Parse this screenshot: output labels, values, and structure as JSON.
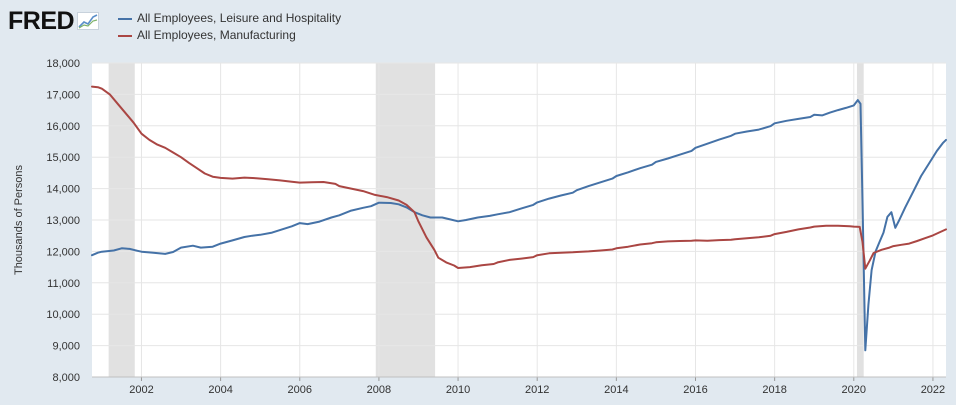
{
  "logo": {
    "text": "FRED"
  },
  "colors": {
    "page_background": "#e1e9f0",
    "plot_background": "#ffffff",
    "recession_shade": "#e1e1e1",
    "grid": "#e6e6e6",
    "leisure": "#4572a7",
    "manufacturing": "#aa4643"
  },
  "chart_data": {
    "type": "line",
    "ylabel": "Thousands of Persons",
    "xlabel": "",
    "ylim": [
      8000,
      18000
    ],
    "xlim": [
      2000.75,
      2022.33
    ],
    "yticks": [
      8000,
      9000,
      10000,
      11000,
      12000,
      13000,
      14000,
      15000,
      16000,
      17000,
      18000
    ],
    "ytick_labels": [
      "8,000",
      "9,000",
      "10,000",
      "11,000",
      "12,000",
      "13,000",
      "14,000",
      "15,000",
      "16,000",
      "17,000",
      "18,000"
    ],
    "xticks": [
      2002,
      2004,
      2006,
      2008,
      2010,
      2012,
      2014,
      2016,
      2018,
      2020,
      2022
    ],
    "xtick_labels": [
      "2002",
      "2004",
      "2006",
      "2008",
      "2010",
      "2012",
      "2014",
      "2016",
      "2018",
      "2020",
      "2022"
    ],
    "grid": true,
    "legend_position": "top-left",
    "recessions": [
      {
        "start": 2001.17,
        "end": 2001.83
      },
      {
        "start": 2007.92,
        "end": 2009.42
      },
      {
        "start": 2020.08,
        "end": 2020.25
      }
    ],
    "series": [
      {
        "name": "All Employees, Leisure and Hospitality",
        "color": "#4572a7",
        "points": [
          [
            2000.75,
            11880
          ],
          [
            2000.9,
            11960
          ],
          [
            2001.0,
            11990
          ],
          [
            2001.3,
            12030
          ],
          [
            2001.5,
            12100
          ],
          [
            2001.7,
            12080
          ],
          [
            2001.9,
            12020
          ],
          [
            2002.0,
            11990
          ],
          [
            2002.3,
            11960
          ],
          [
            2002.6,
            11920
          ],
          [
            2002.8,
            11980
          ],
          [
            2003.0,
            12120
          ],
          [
            2003.3,
            12180
          ],
          [
            2003.5,
            12120
          ],
          [
            2003.8,
            12150
          ],
          [
            2004.0,
            12250
          ],
          [
            2004.3,
            12350
          ],
          [
            2004.6,
            12460
          ],
          [
            2004.8,
            12500
          ],
          [
            2005.0,
            12530
          ],
          [
            2005.3,
            12600
          ],
          [
            2005.6,
            12720
          ],
          [
            2005.8,
            12800
          ],
          [
            2006.0,
            12900
          ],
          [
            2006.2,
            12870
          ],
          [
            2006.5,
            12950
          ],
          [
            2006.8,
            13080
          ],
          [
            2007.0,
            13150
          ],
          [
            2007.3,
            13300
          ],
          [
            2007.6,
            13390
          ],
          [
            2007.8,
            13440
          ],
          [
            2008.0,
            13550
          ],
          [
            2008.3,
            13540
          ],
          [
            2008.5,
            13500
          ],
          [
            2008.7,
            13400
          ],
          [
            2008.9,
            13250
          ],
          [
            2009.1,
            13150
          ],
          [
            2009.3,
            13080
          ],
          [
            2009.6,
            13080
          ],
          [
            2009.8,
            13020
          ],
          [
            2010.0,
            12960
          ],
          [
            2010.2,
            13000
          ],
          [
            2010.5,
            13080
          ],
          [
            2010.8,
            13130
          ],
          [
            2011.0,
            13180
          ],
          [
            2011.3,
            13250
          ],
          [
            2011.6,
            13370
          ],
          [
            2011.9,
            13480
          ],
          [
            2012.0,
            13560
          ],
          [
            2012.3,
            13680
          ],
          [
            2012.6,
            13780
          ],
          [
            2012.9,
            13870
          ],
          [
            2013.0,
            13950
          ],
          [
            2013.3,
            14080
          ],
          [
            2013.6,
            14200
          ],
          [
            2013.9,
            14320
          ],
          [
            2014.0,
            14400
          ],
          [
            2014.3,
            14520
          ],
          [
            2014.6,
            14650
          ],
          [
            2014.9,
            14760
          ],
          [
            2015.0,
            14850
          ],
          [
            2015.3,
            14960
          ],
          [
            2015.6,
            15080
          ],
          [
            2015.9,
            15200
          ],
          [
            2016.0,
            15300
          ],
          [
            2016.3,
            15430
          ],
          [
            2016.6,
            15560
          ],
          [
            2016.9,
            15680
          ],
          [
            2017.0,
            15750
          ],
          [
            2017.3,
            15820
          ],
          [
            2017.6,
            15880
          ],
          [
            2017.9,
            15990
          ],
          [
            2018.0,
            16080
          ],
          [
            2018.3,
            16160
          ],
          [
            2018.6,
            16220
          ],
          [
            2018.9,
            16280
          ],
          [
            2019.0,
            16350
          ],
          [
            2019.2,
            16330
          ],
          [
            2019.4,
            16420
          ],
          [
            2019.6,
            16500
          ],
          [
            2019.8,
            16570
          ],
          [
            2020.0,
            16650
          ],
          [
            2020.1,
            16820
          ],
          [
            2020.17,
            16700
          ],
          [
            2020.22,
            13600
          ],
          [
            2020.29,
            8850
          ],
          [
            2020.37,
            10300
          ],
          [
            2020.45,
            11400
          ],
          [
            2020.55,
            12000
          ],
          [
            2020.65,
            12300
          ],
          [
            2020.75,
            12600
          ],
          [
            2020.85,
            13100
          ],
          [
            2020.95,
            13250
          ],
          [
            2021.05,
            12750
          ],
          [
            2021.15,
            13000
          ],
          [
            2021.3,
            13400
          ],
          [
            2021.5,
            13900
          ],
          [
            2021.7,
            14400
          ],
          [
            2021.9,
            14800
          ],
          [
            2022.1,
            15200
          ],
          [
            2022.25,
            15450
          ],
          [
            2022.33,
            15550
          ]
        ]
      },
      {
        "name": "All Employees, Manufacturing",
        "color": "#aa4643",
        "points": [
          [
            2000.75,
            17250
          ],
          [
            2000.9,
            17230
          ],
          [
            2001.0,
            17180
          ],
          [
            2001.2,
            17000
          ],
          [
            2001.4,
            16700
          ],
          [
            2001.6,
            16400
          ],
          [
            2001.8,
            16100
          ],
          [
            2002.0,
            15750
          ],
          [
            2002.2,
            15550
          ],
          [
            2002.4,
            15400
          ],
          [
            2002.6,
            15300
          ],
          [
            2002.8,
            15150
          ],
          [
            2003.0,
            15000
          ],
          [
            2003.2,
            14820
          ],
          [
            2003.4,
            14650
          ],
          [
            2003.6,
            14480
          ],
          [
            2003.8,
            14380
          ],
          [
            2004.0,
            14340
          ],
          [
            2004.3,
            14320
          ],
          [
            2004.6,
            14350
          ],
          [
            2004.9,
            14330
          ],
          [
            2005.2,
            14300
          ],
          [
            2005.5,
            14260
          ],
          [
            2005.8,
            14220
          ],
          [
            2006.0,
            14190
          ],
          [
            2006.3,
            14200
          ],
          [
            2006.6,
            14210
          ],
          [
            2006.9,
            14150
          ],
          [
            2007.0,
            14080
          ],
          [
            2007.3,
            14000
          ],
          [
            2007.6,
            13920
          ],
          [
            2007.9,
            13800
          ],
          [
            2008.2,
            13730
          ],
          [
            2008.5,
            13620
          ],
          [
            2008.7,
            13480
          ],
          [
            2008.9,
            13250
          ],
          [
            2009.0,
            12950
          ],
          [
            2009.2,
            12450
          ],
          [
            2009.4,
            12050
          ],
          [
            2009.5,
            11800
          ],
          [
            2009.7,
            11650
          ],
          [
            2009.9,
            11550
          ],
          [
            2010.0,
            11470
          ],
          [
            2010.3,
            11500
          ],
          [
            2010.6,
            11560
          ],
          [
            2010.9,
            11600
          ],
          [
            2011.0,
            11650
          ],
          [
            2011.3,
            11730
          ],
          [
            2011.6,
            11770
          ],
          [
            2011.9,
            11820
          ],
          [
            2012.0,
            11880
          ],
          [
            2012.3,
            11940
          ],
          [
            2012.6,
            11960
          ],
          [
            2012.9,
            11970
          ],
          [
            2013.0,
            11980
          ],
          [
            2013.3,
            12000
          ],
          [
            2013.6,
            12030
          ],
          [
            2013.9,
            12060
          ],
          [
            2014.0,
            12100
          ],
          [
            2014.3,
            12150
          ],
          [
            2014.6,
            12220
          ],
          [
            2014.9,
            12260
          ],
          [
            2015.0,
            12290
          ],
          [
            2015.3,
            12320
          ],
          [
            2015.6,
            12330
          ],
          [
            2015.9,
            12340
          ],
          [
            2016.0,
            12350
          ],
          [
            2016.3,
            12340
          ],
          [
            2016.6,
            12360
          ],
          [
            2016.9,
            12370
          ],
          [
            2017.0,
            12390
          ],
          [
            2017.3,
            12420
          ],
          [
            2017.6,
            12450
          ],
          [
            2017.9,
            12500
          ],
          [
            2018.0,
            12550
          ],
          [
            2018.3,
            12620
          ],
          [
            2018.6,
            12700
          ],
          [
            2018.9,
            12760
          ],
          [
            2019.0,
            12790
          ],
          [
            2019.3,
            12820
          ],
          [
            2019.6,
            12820
          ],
          [
            2019.9,
            12800
          ],
          [
            2020.0,
            12790
          ],
          [
            2020.15,
            12780
          ],
          [
            2020.22,
            12300
          ],
          [
            2020.29,
            11450
          ],
          [
            2020.4,
            11700
          ],
          [
            2020.5,
            11950
          ],
          [
            2020.7,
            12050
          ],
          [
            2020.9,
            12120
          ],
          [
            2021.0,
            12170
          ],
          [
            2021.2,
            12210
          ],
          [
            2021.4,
            12250
          ],
          [
            2021.6,
            12330
          ],
          [
            2021.8,
            12420
          ],
          [
            2022.0,
            12510
          ],
          [
            2022.15,
            12600
          ],
          [
            2022.33,
            12700
          ]
        ]
      }
    ]
  }
}
